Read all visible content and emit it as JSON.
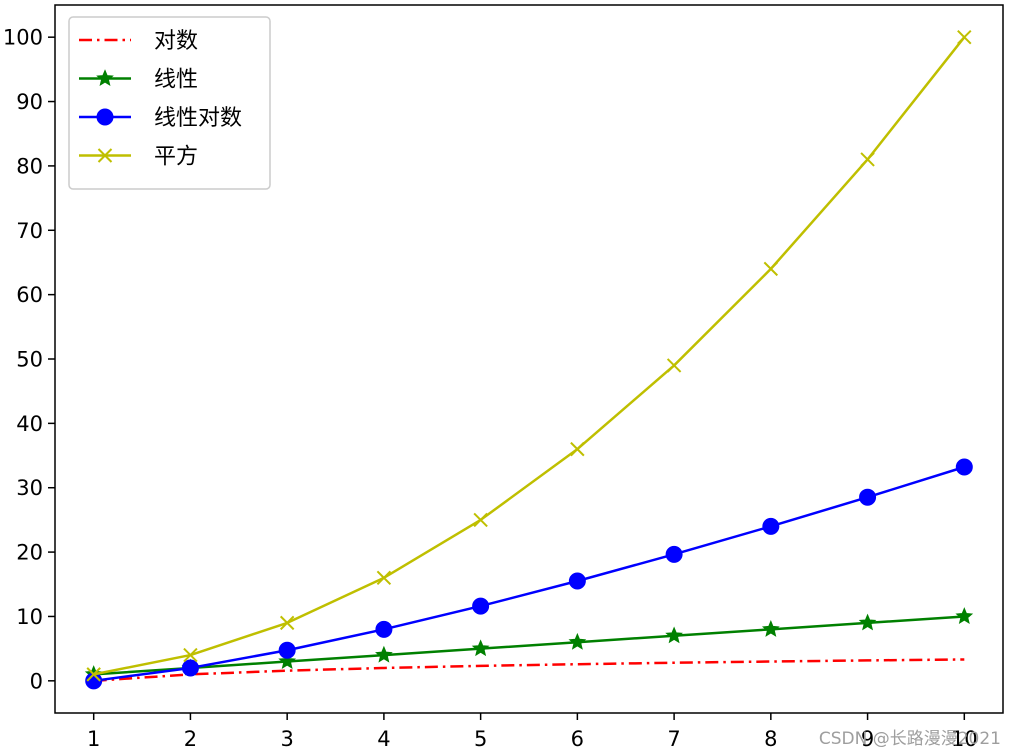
{
  "chart_data": {
    "type": "line",
    "title": "",
    "xlabel": "",
    "ylabel": "",
    "x": [
      1,
      2,
      3,
      4,
      5,
      6,
      7,
      8,
      9,
      10
    ],
    "xlim": [
      0.6,
      10.4
    ],
    "ylim": [
      -5,
      105
    ],
    "xticks": [
      1,
      2,
      3,
      4,
      5,
      6,
      7,
      8,
      9,
      10
    ],
    "yticks": [
      0,
      10,
      20,
      30,
      40,
      50,
      60,
      70,
      80,
      90,
      100
    ],
    "grid": false,
    "legend_position": "upper left",
    "series": [
      {
        "name": "对数",
        "color": "#ff0000",
        "line_style": "dash-dot",
        "marker": "none",
        "values": [
          0,
          1,
          1.58,
          2,
          2.32,
          2.58,
          2.81,
          3,
          3.17,
          3.32
        ]
      },
      {
        "name": "线性",
        "color": "#008000",
        "line_style": "solid",
        "marker": "star",
        "values": [
          1,
          2,
          3,
          4,
          5,
          6,
          7,
          8,
          9,
          10
        ]
      },
      {
        "name": "线性对数",
        "color": "#0000ff",
        "line_style": "solid",
        "marker": "circle",
        "values": [
          0,
          2,
          4.75,
          8,
          11.61,
          15.51,
          19.65,
          24,
          28.53,
          33.22
        ]
      },
      {
        "name": "平方",
        "color": "#bfbf00",
        "line_style": "solid",
        "marker": "x",
        "values": [
          1,
          4,
          9,
          16,
          25,
          36,
          49,
          64,
          81,
          100
        ]
      }
    ]
  },
  "watermark": "CSDN @长路漫漫2021"
}
